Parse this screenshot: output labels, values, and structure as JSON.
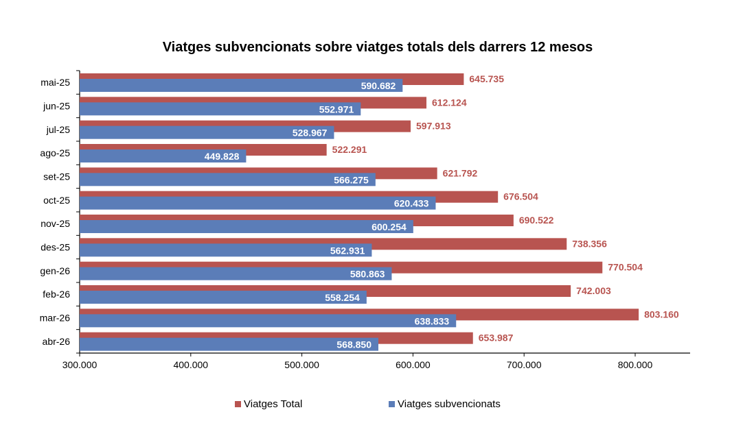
{
  "chart_data": {
    "type": "bar",
    "orientation": "horizontal",
    "title": "Viatges subvencionats sobre viatges totals dels darrers 12 mesos",
    "categories": [
      "mai-25",
      "jun-25",
      "jul-25",
      "ago-25",
      "set-25",
      "oct-25",
      "nov-25",
      "des-25",
      "gen-26",
      "feb-26",
      "mar-26",
      "abr-26"
    ],
    "series": [
      {
        "name": "Viatges Total",
        "color": "#B85450",
        "values": [
          645735,
          612124,
          597913,
          522291,
          621792,
          676504,
          690522,
          738356,
          770504,
          742003,
          803160,
          653987
        ],
        "labels": [
          "645.735",
          "612.124",
          "597.913",
          "522.291",
          "621.792",
          "676.504",
          "690.522",
          "738.356",
          "770.504",
          "742.003",
          "803.160",
          "653.987"
        ]
      },
      {
        "name": "Viatges subvencionats",
        "color": "#5B7DB8",
        "values": [
          590682,
          552971,
          528967,
          449828,
          566275,
          620433,
          600254,
          562931,
          580863,
          558254,
          638833,
          568850
        ],
        "labels": [
          "590.682",
          "552.971",
          "528.967",
          "449.828",
          "566.275",
          "620.433",
          "600.254",
          "562.931",
          "580.863",
          "558.254",
          "638.833",
          "568.850"
        ]
      }
    ],
    "xlim": [
      300000,
      850000
    ],
    "xticks": [
      300000,
      400000,
      500000,
      600000,
      700000,
      800000
    ],
    "xtick_labels": [
      "300.000",
      "400.000",
      "500.000",
      "600.000",
      "700.000",
      "800.000"
    ],
    "grid": false,
    "legend_position": "bottom"
  }
}
